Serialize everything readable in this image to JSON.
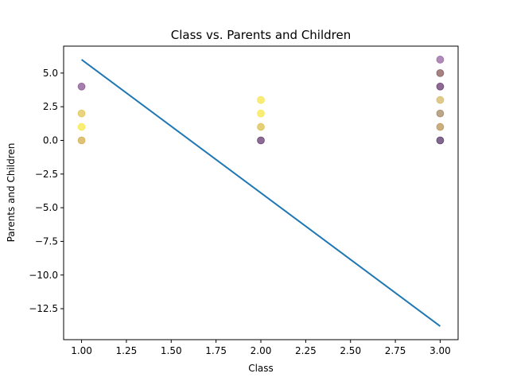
{
  "chart_data": {
    "type": "scatter",
    "title": "Class vs. Parents and Children",
    "xlabel": "Class",
    "ylabel": "Parents and Children",
    "xlim": [
      0.9,
      3.1
    ],
    "ylim": [
      -14.8,
      7.0
    ],
    "xticks": [
      {
        "value": 1.0,
        "label": "1.00"
      },
      {
        "value": 1.25,
        "label": "1.25"
      },
      {
        "value": 1.5,
        "label": "1.50"
      },
      {
        "value": 1.75,
        "label": "1.75"
      },
      {
        "value": 2.0,
        "label": "2.00"
      },
      {
        "value": 2.25,
        "label": "2.25"
      },
      {
        "value": 2.5,
        "label": "2.50"
      },
      {
        "value": 2.75,
        "label": "2.75"
      },
      {
        "value": 3.0,
        "label": "3.00"
      }
    ],
    "yticks": [
      {
        "value": 5.0,
        "label": "5.0"
      },
      {
        "value": 2.5,
        "label": "2.5"
      },
      {
        "value": 0.0,
        "label": "0.0"
      },
      {
        "value": -2.5,
        "label": "−2.5"
      },
      {
        "value": -5.0,
        "label": "−5.0"
      },
      {
        "value": -7.5,
        "label": "−7.5"
      },
      {
        "value": -10.0,
        "label": "−10.0"
      },
      {
        "value": -12.5,
        "label": "−12.5"
      }
    ],
    "grid": false,
    "points": [
      {
        "x": 1,
        "y": 4,
        "color": "#6a2c77"
      },
      {
        "x": 1,
        "y": 2,
        "color": "#d9b82b"
      },
      {
        "x": 1,
        "y": 1,
        "color": "#f4e21a"
      },
      {
        "x": 1,
        "y": 0,
        "color": "#c99a22"
      },
      {
        "x": 2,
        "y": 3,
        "color": "#f2e01d"
      },
      {
        "x": 2,
        "y": 2,
        "color": "#f4e21a"
      },
      {
        "x": 2,
        "y": 1,
        "color": "#d4b021"
      },
      {
        "x": 2,
        "y": 0,
        "color": "#3f0a4e"
      },
      {
        "x": 3,
        "y": 6,
        "color": "#7b3d8a"
      },
      {
        "x": 3,
        "y": 5,
        "color": "#6a2f2f"
      },
      {
        "x": 3,
        "y": 4,
        "color": "#45074f"
      },
      {
        "x": 3,
        "y": 3,
        "color": "#c9a73c"
      },
      {
        "x": 3,
        "y": 2,
        "color": "#8f6a3a"
      },
      {
        "x": 3,
        "y": 1,
        "color": "#a8782a"
      },
      {
        "x": 3,
        "y": 0,
        "color": "#2d0342"
      }
    ],
    "line": {
      "color": "#1f77b4",
      "x": [
        1.0,
        3.0
      ],
      "y": [
        6.0,
        -13.8
      ]
    },
    "point_alpha": 0.6
  }
}
